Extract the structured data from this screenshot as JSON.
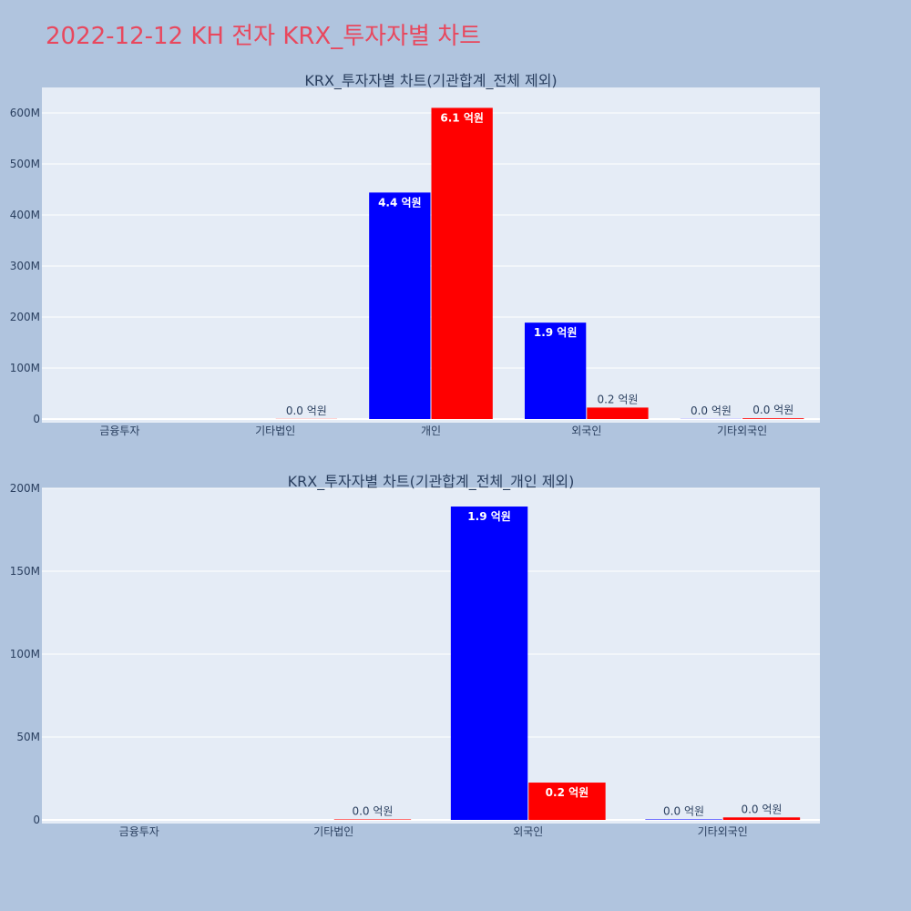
{
  "page_title": "2022-12-12 KH 전자 KRX_투자자별 차트",
  "colors": {
    "background": "#b0c4de",
    "plot_bg": "#e5ecf6",
    "series_a": "#0000ff",
    "series_b": "#ff0000",
    "title": "#e8485e"
  },
  "chart_data": [
    {
      "type": "bar",
      "title": "KRX_투자자별 차트(기관합계_전체 제외)",
      "categories": [
        "금융투자",
        "기타법인",
        "개인",
        "외국인",
        "기타외국인"
      ],
      "ylim": [
        0,
        650000000
      ],
      "yticks": [
        0,
        100000000,
        200000000,
        300000000,
        400000000,
        500000000,
        600000000
      ],
      "ytick_labels": [
        "0",
        "100M",
        "200M",
        "300M",
        "400M",
        "500M",
        "600M"
      ],
      "grid": true,
      "series": [
        {
          "color": "#0000ff",
          "values": [
            0,
            0,
            444000000,
            189000000,
            300000
          ],
          "labels": [
            "",
            "",
            "4.4 억원",
            "1.9 억원",
            "0.0 억원"
          ]
        },
        {
          "color": "#ff0000",
          "values": [
            0,
            300000,
            610000000,
            22500000,
            1500000
          ],
          "labels": [
            "",
            "0.0 억원",
            "6.1 억원",
            "0.2 억원",
            "0.0 억원"
          ]
        }
      ]
    },
    {
      "type": "bar",
      "title": "KRX_투자자별 차트(기관합계_전체_개인 제외)",
      "categories": [
        "금융투자",
        "기타법인",
        "외국인",
        "기타외국인"
      ],
      "ylim": [
        0,
        200000000
      ],
      "yticks": [
        0,
        50000000,
        100000000,
        150000000,
        200000000
      ],
      "ytick_labels": [
        "0",
        "50M",
        "100M",
        "150M",
        "200M"
      ],
      "grid": true,
      "series": [
        {
          "color": "#0000ff",
          "values": [
            0,
            0,
            189000000,
            300000
          ],
          "labels": [
            "",
            "",
            "1.9 억원",
            "0.0 억원"
          ]
        },
        {
          "color": "#ff0000",
          "values": [
            0,
            300000,
            22500000,
            1500000
          ],
          "labels": [
            "",
            "0.0 억원",
            "0.2 억원",
            "0.0 억원"
          ]
        }
      ]
    }
  ]
}
